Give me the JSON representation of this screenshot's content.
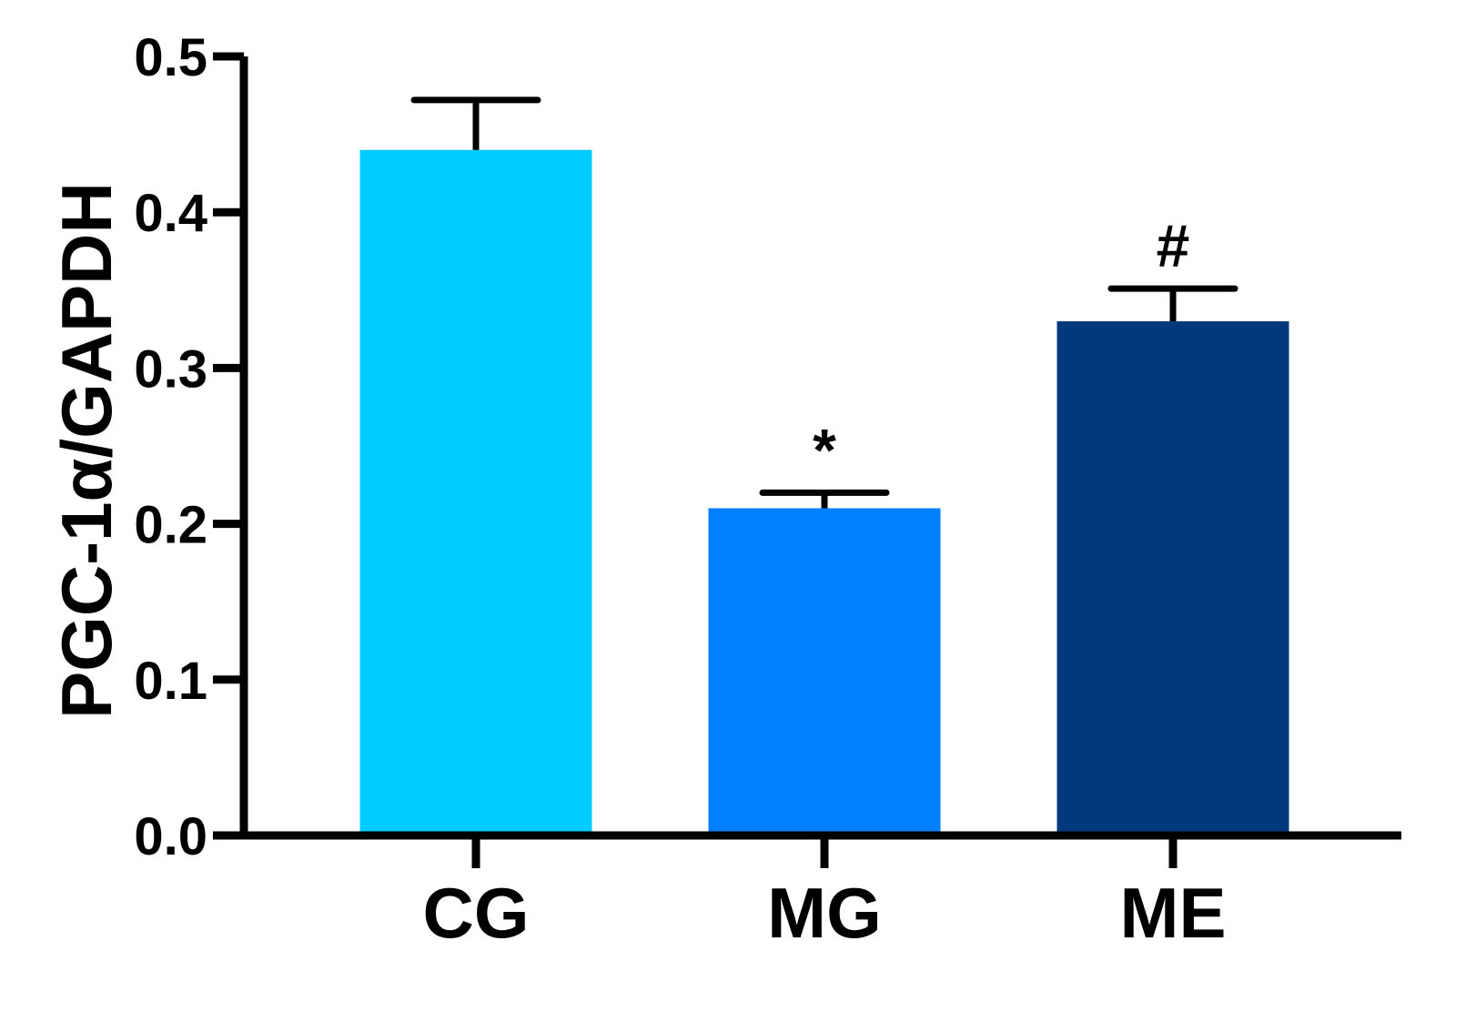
{
  "chart_data": {
    "type": "bar",
    "title": "",
    "ylabel": "PGC-1α/GAPDH",
    "xlabel": "",
    "ylim": [
      0,
      0.5
    ],
    "yticks": [
      "0.0",
      "0.1",
      "0.2",
      "0.3",
      "0.4",
      "0.5"
    ],
    "grid": false,
    "categories": [
      "CG",
      "MG",
      "ME"
    ],
    "values": [
      0.44,
      0.21,
      0.33
    ],
    "errors": [
      0.032,
      0.01,
      0.021
    ],
    "annotations": [
      "",
      "*",
      "#"
    ],
    "colors": [
      "#00CCFF",
      "#0080FF",
      "#003A7D"
    ]
  }
}
